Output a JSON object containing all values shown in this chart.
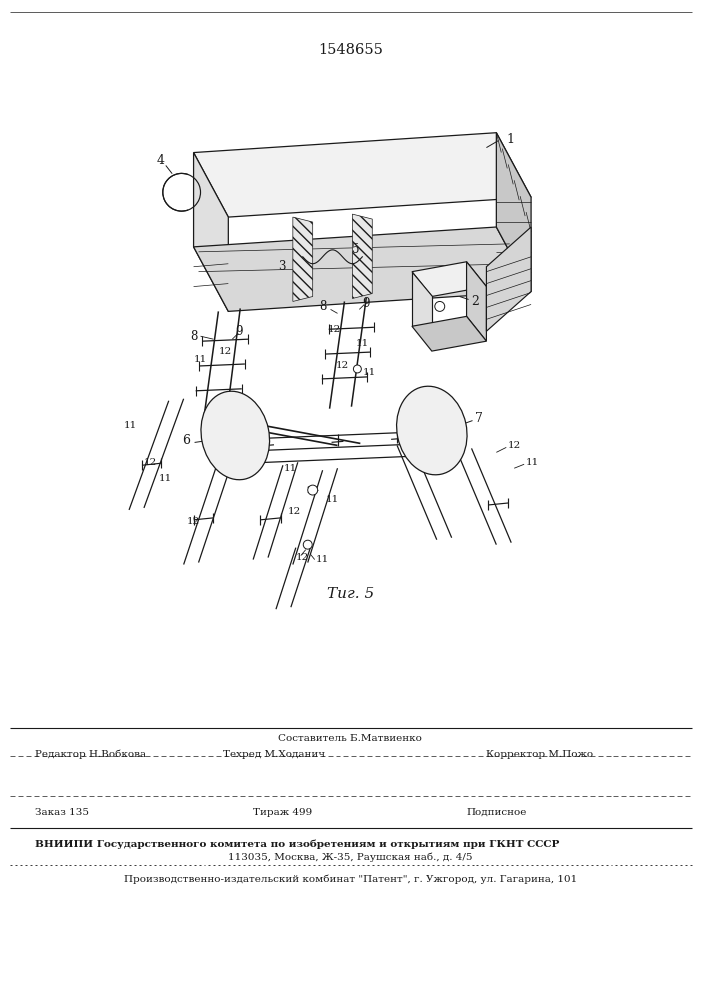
{
  "patent_number": "1548655",
  "fig_label": "Τиг. 5",
  "background_color": "#ffffff",
  "line_color": "#1a1a1a",
  "editor_line": "Редактор Н.Вобкова",
  "sostavitel_line": "Составитель Б.Матвиенко",
  "tehred_line": "Техред М.Ходанич",
  "korrektor_line": "Корректор М.Пожо",
  "zakaz_line": "Заказ 135",
  "tirazh_line": "Тираж 499",
  "podpisnoe_line": "Подписное",
  "vniigi_line1": "ВНИИПИ Государственного комитета по изобретениям и открытиям при ГКНТ СССР",
  "vniigi_line2": "113035, Москва, Ж-35, Раушская наб., д. 4/5",
  "proizv_line": "Производственно-издательский комбинат \"Патент\", г. Ужгород, ул. Гагарина, 101"
}
